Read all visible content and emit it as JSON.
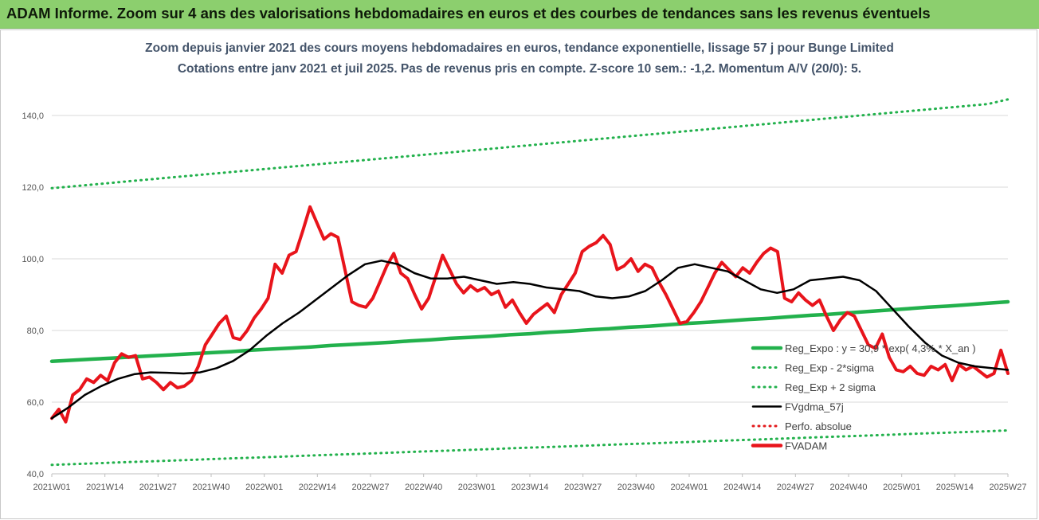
{
  "banner": {
    "title": "ADAM Informe. Zoom sur 4 ans des valorisations hebdomadaires en euros et des courbes de tendances sans les revenus éventuels"
  },
  "chart_data": {
    "type": "line",
    "title_line1": "Zoom depuis janvier 2021 des cours moyens hebdomadaires en euros, tendance exponentielle, lissage 57 j pour Bunge Limited",
    "title_line2": "Cotations entre janv 2021 et juil 2025. Pas de revenus pris en compte. Z-score 10 sem.: -1,2. Momentum A/V (20/0): 5.",
    "xlabel": "",
    "ylabel": "",
    "ylim": [
      40,
      150
    ],
    "yticks": [
      "40,0",
      "60,0",
      "80,0",
      "100,0",
      "120,0",
      "140,0"
    ],
    "ytick_values": [
      40,
      60,
      80,
      100,
      120,
      140
    ],
    "xticks": [
      "2021W01",
      "2021W14",
      "2021W27",
      "2021W40",
      "2022W01",
      "2022W14",
      "2022W27",
      "2022W40",
      "2023W01",
      "2023W14",
      "2023W27",
      "2023W40",
      "2024W01",
      "2024W14",
      "2024W27",
      "2024W40",
      "2025W01",
      "2025W14",
      "2025W27"
    ],
    "grid": true,
    "legend_position": "bottom-right",
    "colors": {
      "reg_expo": "#22b14c",
      "sigma": "#22b14c",
      "smooth": "#000000",
      "perfo": "#e31a1c",
      "price": "#e8141b"
    },
    "series": [
      {
        "name": "Reg_Expo : y = 30,9 * exp( 4,3% * X_an )",
        "style": "solid-thick",
        "values": [
          71.4,
          71.7,
          72.0,
          72.3,
          72.6,
          72.9,
          73.2,
          73.5,
          73.8,
          74.1,
          74.5,
          74.8,
          75.1,
          75.4,
          75.8,
          76.1,
          76.4,
          76.7,
          77.1,
          77.4,
          77.8,
          78.1,
          78.4,
          78.8,
          79.1,
          79.5,
          79.8,
          80.2,
          80.5,
          80.9,
          81.2,
          81.6,
          82.0,
          82.3,
          82.7,
          83.1,
          83.4,
          83.8,
          84.2,
          84.5,
          84.9,
          85.3,
          85.7,
          86.1,
          86.5,
          86.8,
          87.2,
          87.6,
          88.0
        ]
      },
      {
        "name": "Reg_Exp - 2*sigma",
        "style": "dotted",
        "values": [
          42.5,
          42.7,
          42.9,
          43.1,
          43.3,
          43.5,
          43.7,
          43.9,
          44.1,
          44.3,
          44.5,
          44.7,
          44.9,
          45.1,
          45.3,
          45.5,
          45.7,
          45.9,
          46.1,
          46.3,
          46.5,
          46.7,
          46.9,
          47.1,
          47.3,
          47.5,
          47.7,
          47.9,
          48.1,
          48.3,
          48.5,
          48.7,
          48.9,
          49.1,
          49.3,
          49.5,
          49.7,
          49.9,
          50.1,
          50.3,
          50.5,
          50.7,
          50.9,
          51.1,
          51.3,
          51.5,
          51.7,
          51.9,
          52.1
        ]
      },
      {
        "name": "Reg_Exp + 2 sigma",
        "style": "dotted",
        "values": [
          119.7,
          120.2,
          120.7,
          121.2,
          121.7,
          122.2,
          122.7,
          123.2,
          123.7,
          124.2,
          124.7,
          125.2,
          125.7,
          126.2,
          126.7,
          127.2,
          127.7,
          128.2,
          128.7,
          129.2,
          129.7,
          130.2,
          130.7,
          131.2,
          131.7,
          132.2,
          132.7,
          133.2,
          133.7,
          134.2,
          134.7,
          135.2,
          135.7,
          136.2,
          136.7,
          137.2,
          137.7,
          138.2,
          138.7,
          139.2,
          139.7,
          140.2,
          140.7,
          141.2,
          141.7,
          142.2,
          142.7,
          143.2,
          144.5
        ]
      },
      {
        "name": "FVgdma_57j",
        "style": "solid",
        "values": [
          55.5,
          58.5,
          62.0,
          64.5,
          66.5,
          67.8,
          68.3,
          68.2,
          68.0,
          68.3,
          69.5,
          71.5,
          74.5,
          78.5,
          82.0,
          85.0,
          88.5,
          92.0,
          95.5,
          98.5,
          99.5,
          98.5,
          96.0,
          94.5,
          94.5,
          95.0,
          94.0,
          93.0,
          93.5,
          93.0,
          92.0,
          91.5,
          91.0,
          89.5,
          89.0,
          89.5,
          91.0,
          94.0,
          97.5,
          98.5,
          97.5,
          96.5,
          94.0,
          91.5,
          90.5,
          91.5,
          94.0,
          94.5,
          95.0,
          94.0,
          91.0,
          86.0,
          81.0,
          76.5,
          73.0,
          71.0,
          70.0,
          69.5,
          69.0
        ]
      },
      {
        "name": "Perfo. absolue",
        "style": "dotted-red",
        "values": []
      },
      {
        "name": "FVADAM",
        "style": "solid-thick",
        "values": [
          55.5,
          58.0,
          54.5,
          62.0,
          63.5,
          66.5,
          65.5,
          67.5,
          66.0,
          71.0,
          73.5,
          72.5,
          73.0,
          66.5,
          67.0,
          65.5,
          63.5,
          65.5,
          64.0,
          64.5,
          66.0,
          70.0,
          76.0,
          79.0,
          82.0,
          84.0,
          78.0,
          77.5,
          80.0,
          83.5,
          86.0,
          89.0,
          98.5,
          96.0,
          101.0,
          102.0,
          108.0,
          114.5,
          110.0,
          105.5,
          107.0,
          106.0,
          97.0,
          88.0,
          87.0,
          86.5,
          89.0,
          93.5,
          98.0,
          101.5,
          96.0,
          94.5,
          90.0,
          86.0,
          89.0,
          95.0,
          101.0,
          97.0,
          93.0,
          90.5,
          92.5,
          91.0,
          92.0,
          90.0,
          91.0,
          86.5,
          88.5,
          85.0,
          82.0,
          84.5,
          86.0,
          87.5,
          85.0,
          90.0,
          93.0,
          96.0,
          102.0,
          103.5,
          104.5,
          106.5,
          104.0,
          97.0,
          98.0,
          100.0,
          96.5,
          98.5,
          97.5,
          93.5,
          90.0,
          86.0,
          82.0,
          82.5,
          85.0,
          88.0,
          92.0,
          96.0,
          99.0,
          97.0,
          95.0,
          97.5,
          96.0,
          99.0,
          101.5,
          103.0,
          102.0,
          89.0,
          88.0,
          90.5,
          88.5,
          87.0,
          88.5,
          84.0,
          80.0,
          83.0,
          85.0,
          84.0,
          80.0,
          76.0,
          75.0,
          79.0,
          72.5,
          69.0,
          68.5,
          70.0,
          68.0,
          67.5,
          70.0,
          69.0,
          70.5,
          66.0,
          70.5,
          69.0,
          70.0,
          68.5,
          67.0,
          68.0,
          74.5,
          68.0
        ]
      }
    ],
    "legend": [
      {
        "label": "Reg_Expo : y = 30,9 * exp( 4,3% * X_an )",
        "key": "reg_expo",
        "style": "solid-thick"
      },
      {
        "label": "Reg_Exp - 2*sigma",
        "key": "sigma",
        "style": "dotted"
      },
      {
        "label": "Reg_Exp + 2 sigma",
        "key": "sigma",
        "style": "dotted"
      },
      {
        "label": "FVgdma_57j",
        "key": "smooth",
        "style": "solid"
      },
      {
        "label": "Perfo. absolue",
        "key": "perfo",
        "style": "dotted"
      },
      {
        "label": "FVADAM",
        "key": "price",
        "style": "solid-thick"
      }
    ]
  }
}
